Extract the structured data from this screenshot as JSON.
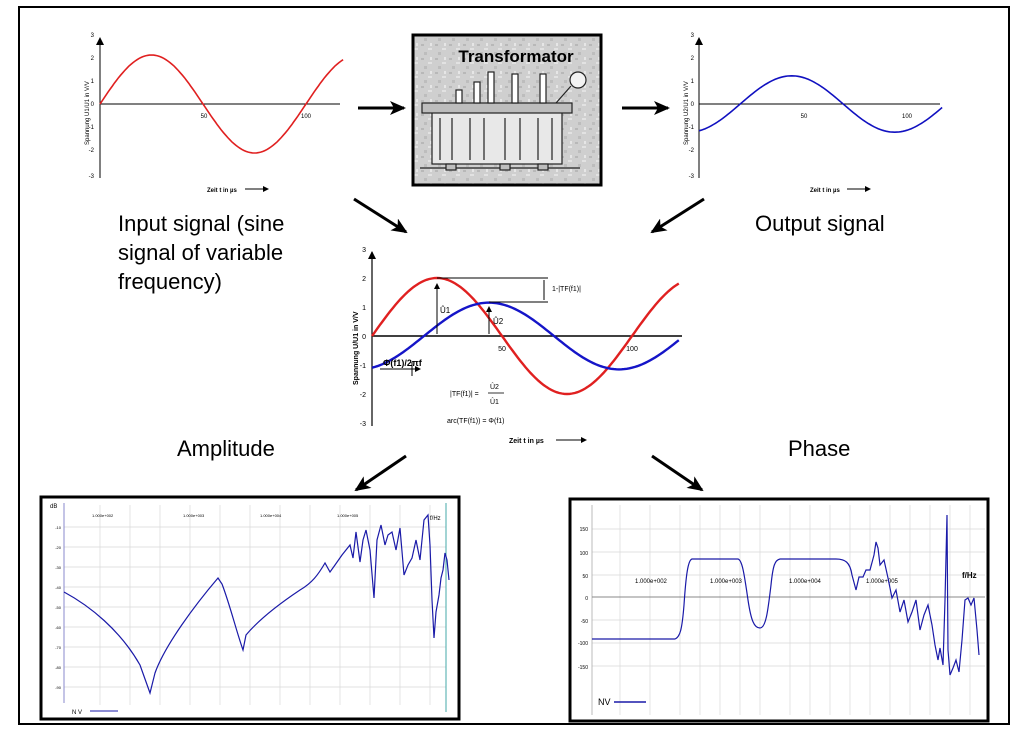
{
  "axes": {
    "y_ticks": [
      "3",
      "2",
      "1",
      "0",
      "-1",
      "-2",
      "-3"
    ],
    "x_ticks": [
      "50",
      "100"
    ]
  },
  "input_chart": {
    "ylabel": "Spannung U1/U1 in V/V",
    "xlabel": "Zeit t in µs",
    "ylim": [
      -3,
      3
    ],
    "xlim": [
      0,
      118
    ],
    "amplitude": 2,
    "period": 100,
    "phase_shift": 0
  },
  "output_chart": {
    "ylabel": "Spannung U2/U1 in V/V",
    "xlabel": "Zeit t in µs",
    "ylim": [
      -3,
      3
    ],
    "xlim": [
      0,
      118
    ],
    "amplitude": 1.15,
    "period": 100,
    "phase_shift": 20
  },
  "transformer": {
    "title": "Transformator"
  },
  "captions": {
    "input_line1": "Input signal  (sine",
    "input_line2": "signal of variable",
    "input_line3": "frequency)",
    "output": "Output signal",
    "amplitude": "Amplitude",
    "phase": "Phase"
  },
  "combined_chart": {
    "ylabel": "Spannung U/U1 in V/V",
    "xlabel": "Zeit t in µs",
    "u1_label": "Û1",
    "u2_label": "Û2",
    "diff_label": "1-|TF(f1)|",
    "phi_label": "Φ(f1)/2πf",
    "tf_lhs": "|TF(f1)| =",
    "tf_num": "Û2",
    "tf_den": "Û1",
    "arc_label": "arc(TF(f1)) = Φ(f1)"
  },
  "amplitude_plot": {
    "unit_label": "dB",
    "freq_unit": "f/Hz",
    "legend": "N V",
    "x_ticks": [
      "1.000e+002",
      "1.000e+003",
      "1.000e+004",
      "1.000e+005"
    ],
    "y_ticks": [
      "-10",
      "-20",
      "-30",
      "-40",
      "-50",
      "-60",
      "-70",
      "-80",
      "-90"
    ]
  },
  "phase_plot": {
    "freq_unit": "f/Hz",
    "legend": "NV",
    "x_ticks": [
      "1.000e+002",
      "1.000e+003",
      "1.000e+004",
      "1.000e+005"
    ],
    "y_ticks": [
      "150",
      "100",
      "50",
      "0",
      "-50",
      "-100",
      "-150"
    ]
  },
  "chart_data": [
    {
      "type": "line",
      "series": [
        {
          "values_desc": "sine",
          "amplitude": 2,
          "period": 100
        }
      ],
      "x": [
        0,
        25,
        50,
        75,
        100,
        118
      ],
      "y": [
        0,
        2,
        0,
        -2,
        0,
        1.6
      ],
      "xlabel": "Zeit t in µs",
      "ylabel": "Spannung U1/U1 in V/V",
      "ylim": [
        -3,
        3
      ]
    },
    {
      "type": "line",
      "x": [
        0,
        20,
        45,
        70,
        95,
        118
      ],
      "y": [
        -1.1,
        0,
        1.15,
        0,
        -1.15,
        -0.4
      ],
      "xlabel": "Zeit t in µs",
      "ylabel": "Spannung U2/U1 in V/V",
      "ylim": [
        -3,
        3
      ]
    },
    {
      "type": "line",
      "x": [
        0,
        25,
        45,
        75,
        95,
        118
      ],
      "y": [
        0,
        2,
        1.15,
        -2,
        -1.15,
        1.55
      ],
      "xlabel": "Zeit t in µs",
      "ylabel": "Spannung U/U1 in V/V",
      "ylim": [
        -3,
        3
      ]
    },
    {
      "type": "line",
      "x": [
        100,
        1000,
        10000,
        100000
      ],
      "xlabel": "f/Hz",
      "ylabel": "dB"
    },
    {
      "type": "line",
      "x": [
        100,
        1000,
        10000,
        100000
      ],
      "xlabel": "f/Hz"
    }
  ]
}
